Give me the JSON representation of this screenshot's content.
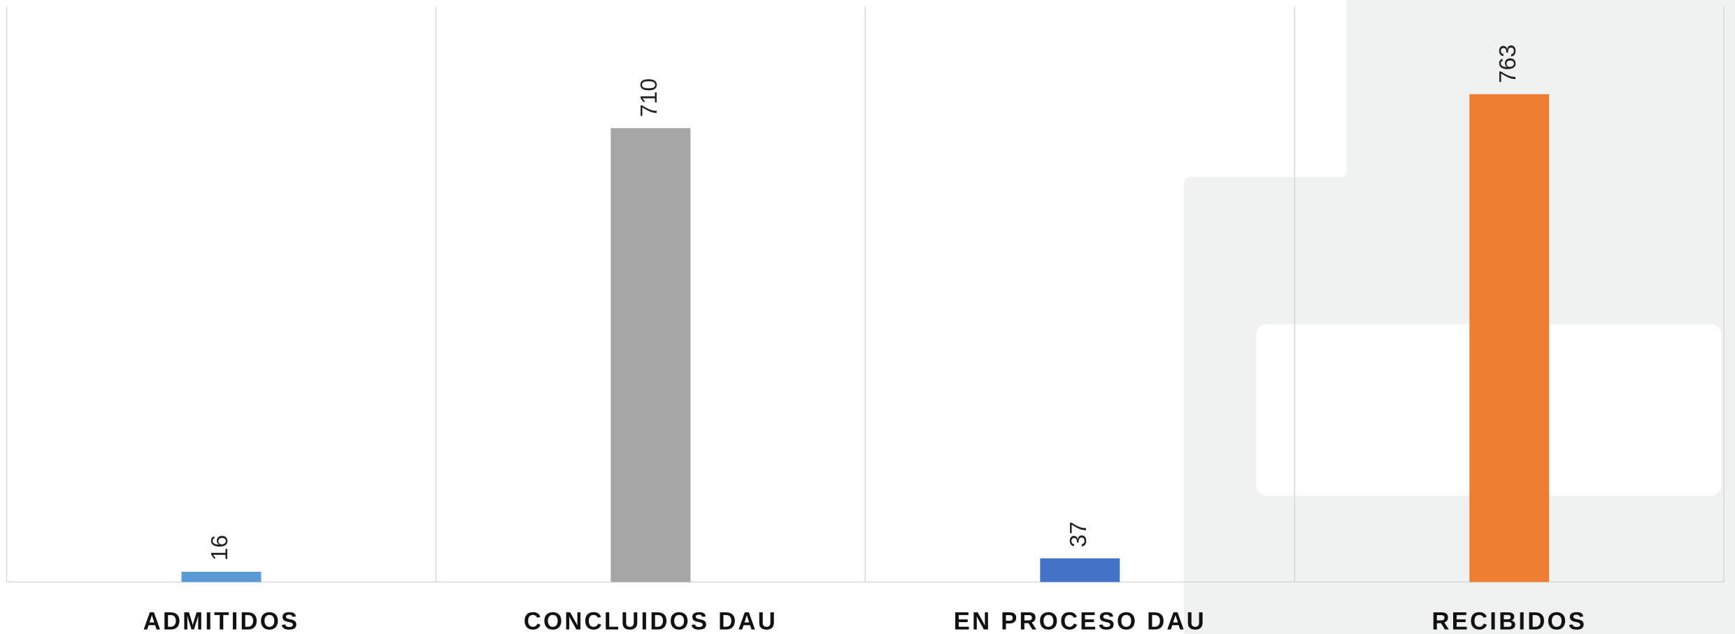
{
  "chart_data": {
    "type": "bar",
    "categories": [
      "ADMITIDOS",
      "CONCLUIDOS DAU",
      "EN PROCESO DAU",
      "RECIBIDOS"
    ],
    "values": [
      16,
      710,
      37,
      763
    ],
    "colors": [
      "#5b9bd5",
      "#a5a5a5",
      "#4472c4",
      "#ed7d31"
    ],
    "ylim": [
      0,
      900
    ]
  }
}
